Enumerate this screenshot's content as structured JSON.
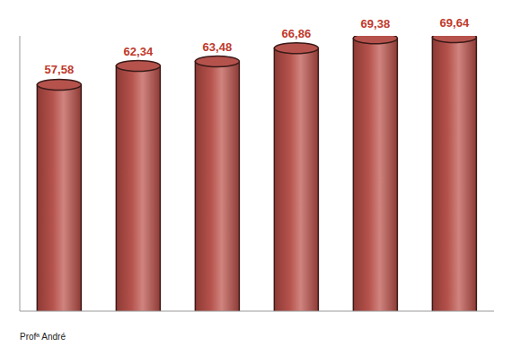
{
  "chart_data": {
    "type": "bar",
    "categories": [
      null,
      null,
      null,
      null,
      null,
      null
    ],
    "values": [
      57.58,
      62.34,
      63.48,
      66.86,
      69.38,
      69.64
    ],
    "value_labels": [
      "57,58",
      "62,34",
      "63,48",
      "66,86",
      "69,38",
      "69,64"
    ],
    "data_labels": true,
    "tick_labels": false,
    "color": "#b5524c",
    "ylim": [
      0,
      70
    ],
    "yticks": [
      0,
      70
    ],
    "annotations": [
      "Profª André"
    ]
  }
}
